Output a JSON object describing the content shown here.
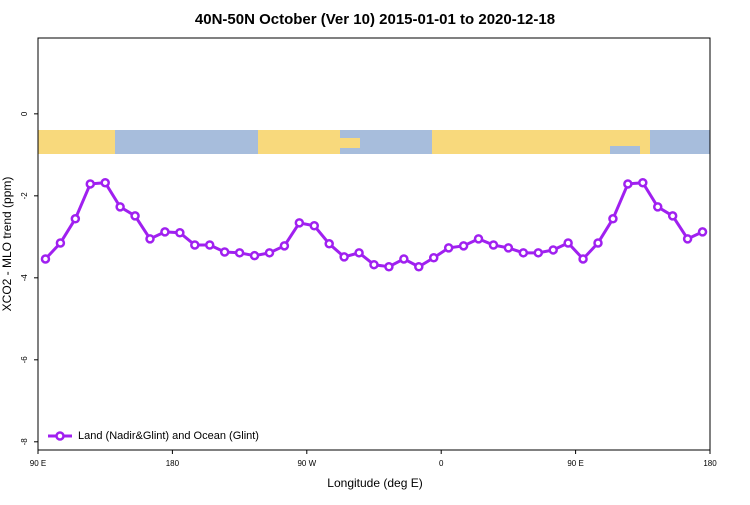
{
  "chart_data": {
    "type": "line",
    "title": "40N-50N October (Ver 10)   2015-01-01 to 2020-12-18",
    "x_label": "Longitude (deg E)",
    "y_label": "XCO2 - MLO trend (ppm)",
    "x": [
      95,
      105,
      115,
      125,
      135,
      145,
      155,
      165,
      175,
      185,
      195,
      205,
      215,
      225,
      235,
      245,
      255,
      265,
      275,
      285,
      295,
      305,
      315,
      325,
      335,
      345,
      355,
      365,
      375,
      385,
      395,
      405,
      415,
      425,
      435,
      445,
      455,
      465,
      475,
      485,
      495,
      505,
      515,
      525,
      535
    ],
    "series": [
      {
        "name": "Land (Nadir&Glint) and Ocean (Glint)",
        "color": "#a020f0",
        "values": [
          -3.54,
          -3.15,
          -2.56,
          -1.71,
          -1.68,
          -2.27,
          -2.49,
          -3.05,
          -2.88,
          -2.9,
          -3.2,
          -3.2,
          -3.37,
          -3.39,
          -3.46,
          -3.39,
          -3.22,
          -2.66,
          -2.73,
          -3.17,
          -3.49,
          -3.39,
          -3.68,
          -3.73,
          -3.54,
          -3.73,
          -3.51,
          -3.27,
          -3.22,
          -3.05,
          -3.2,
          -3.27,
          -3.39,
          -3.39,
          -3.32,
          -3.15,
          -3.54,
          -3.15,
          -2.56,
          -1.71,
          -1.68,
          -2.27,
          -2.49,
          -3.05,
          -2.88
        ]
      }
    ],
    "xlim": [
      90,
      540
    ],
    "xticks": [
      {
        "value": 90,
        "label": "90 E"
      },
      {
        "value": 180,
        "label": "180"
      },
      {
        "value": 270,
        "label": "90 W"
      },
      {
        "value": 360,
        "label": "0"
      },
      {
        "value": 450,
        "label": "90 E"
      },
      {
        "value": 540,
        "label": "180"
      }
    ],
    "ylim": [
      -8.2,
      1.85
    ],
    "yticks": [
      -8,
      -6,
      -4,
      -2,
      0
    ],
    "legend": "bottom-left"
  }
}
